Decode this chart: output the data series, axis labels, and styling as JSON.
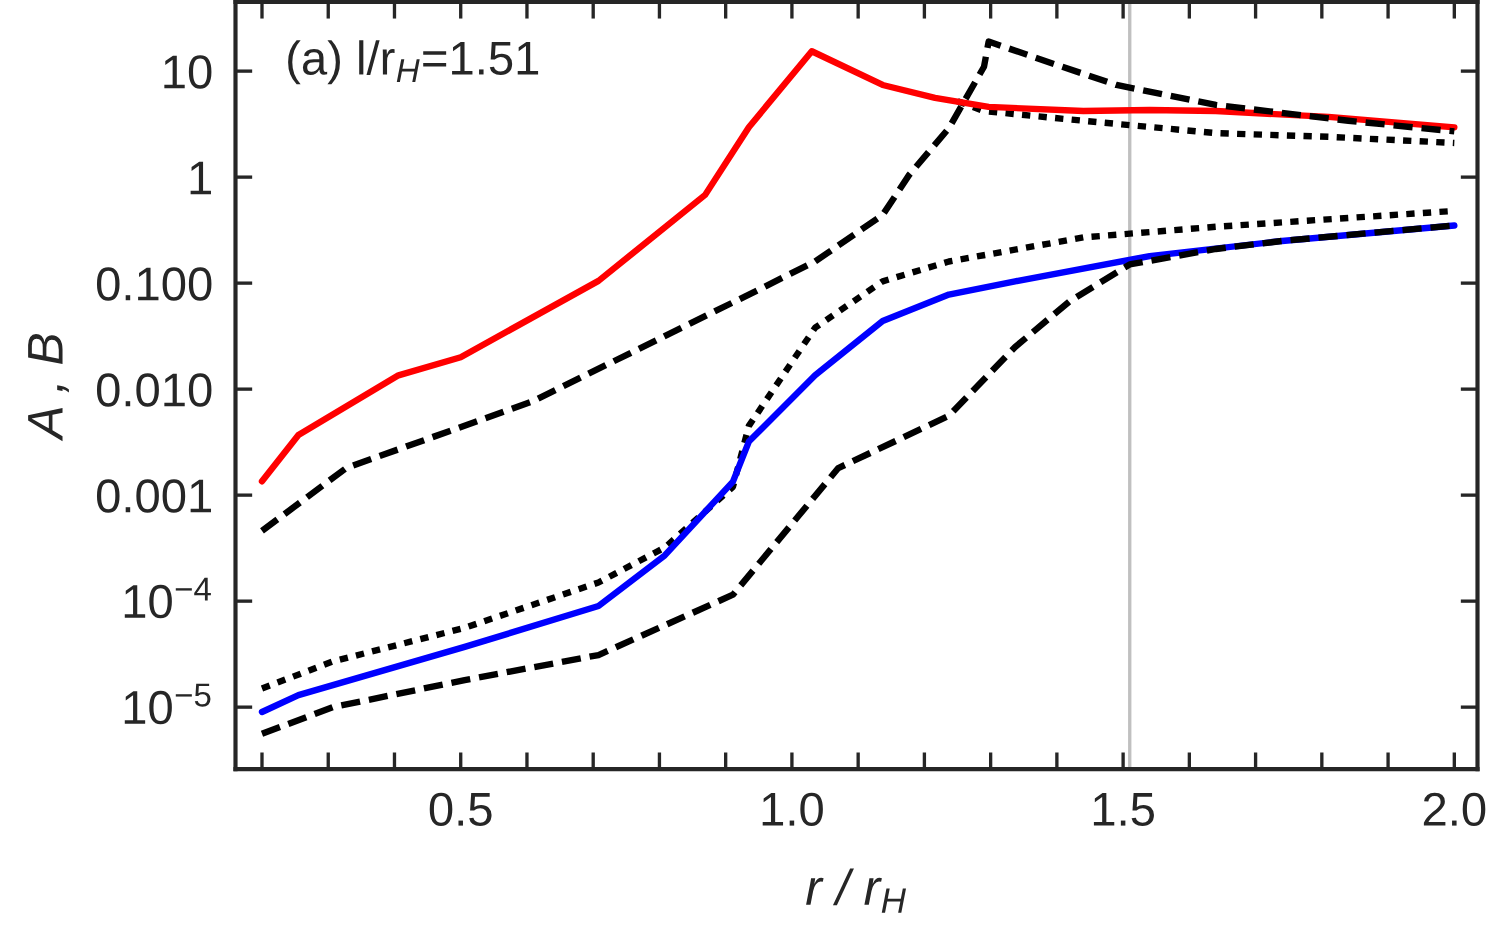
{
  "chart_data": {
    "type": "line",
    "xlabel": "r / r$_{H}$",
    "ylabel": "A , B",
    "log": "y",
    "grid": false,
    "legend": false,
    "marker": "none",
    "annotations": [
      "(a) l/r$_{H}$=1.51"
    ],
    "xlim": [
      0.16,
      2.035
    ],
    "ylim": [
      2.6e-06,
      45
    ],
    "xticks": [
      {
        "value": 0.2,
        "label": null
      },
      {
        "value": 0.3,
        "label": null
      },
      {
        "value": 0.4,
        "label": null
      },
      0.5,
      {
        "value": 0.6,
        "label": null
      },
      {
        "value": 0.7,
        "label": null
      },
      {
        "value": 0.8,
        "label": null
      },
      {
        "value": 0.9,
        "label": null
      },
      {
        "value": 1.0,
        "label": "1.0"
      },
      {
        "value": 1.1,
        "label": null
      },
      {
        "value": 1.2,
        "label": null
      },
      {
        "value": 1.3,
        "label": null
      },
      {
        "value": 1.4,
        "label": null
      },
      1.5,
      {
        "value": 1.6,
        "label": null
      },
      {
        "value": 1.7,
        "label": null
      },
      {
        "value": 1.8,
        "label": null
      },
      {
        "value": 1.9,
        "label": null
      },
      {
        "value": 2.0,
        "label": "2.0"
      }
    ],
    "yticks": [
      {
        "value": 1e-05,
        "label": "10$^{−5}$"
      },
      {
        "value": 0.0001,
        "label": "10$^{−4}$"
      },
      {
        "value": 0.001,
        "label": "0.001"
      },
      {
        "value": 0.01,
        "label": "0.010"
      },
      {
        "value": 0.1,
        "label": "0.100"
      },
      1,
      10
    ],
    "ref_lines": [
      {
        "axis": "x",
        "value": 1.51,
        "color": "#c0c0c0"
      }
    ],
    "series": [
      {
        "color": "#000000",
        "line_style": "dashed",
        "x": [
          0.2,
          0.307,
          0.506,
          0.708,
          0.911,
          1.07,
          1.237,
          1.337,
          1.42,
          1.51,
          1.64,
          1.74,
          2.0
        ],
        "values": [
          5.6e-06,
          1e-05,
          1.8e-05,
          3.1e-05,
          0.000115,
          0.0018,
          0.0056,
          0.025,
          0.068,
          0.15,
          0.21,
          0.25,
          0.35
        ]
      },
      {
        "color": "#000000",
        "line_style": "dotted",
        "x": [
          0.2,
          0.307,
          0.506,
          0.708,
          0.808,
          0.911,
          0.935,
          1.035,
          1.137,
          1.237,
          1.44,
          1.64,
          2.0
        ],
        "values": [
          1.5e-05,
          2.7e-05,
          5.6e-05,
          0.00015,
          0.00032,
          0.0012,
          0.0045,
          0.038,
          0.104,
          0.16,
          0.27,
          0.34,
          0.48
        ]
      },
      {
        "color": "#0000ff",
        "line_style": "solid",
        "x": [
          0.2,
          0.255,
          0.506,
          0.708,
          0.808,
          0.911,
          0.935,
          1.035,
          1.137,
          1.237,
          1.337,
          1.54,
          1.74,
          2.0
        ],
        "values": [
          9e-06,
          1.3e-05,
          3.7e-05,
          9e-05,
          0.00027,
          0.00134,
          0.0032,
          0.0135,
          0.044,
          0.078,
          0.104,
          0.18,
          0.25,
          0.35
        ]
      },
      {
        "color": "#000000",
        "line_style": "dashed",
        "x": [
          0.2,
          0.327,
          0.609,
          0.935,
          1.035,
          1.137,
          1.177,
          1.237,
          1.29,
          1.297,
          1.39,
          1.49,
          1.64,
          1.84,
          2.0
        ],
        "values": [
          0.00046,
          0.0018,
          0.0077,
          0.078,
          0.16,
          0.44,
          1.05,
          2.9,
          11,
          19,
          12,
          7.4,
          4.8,
          3.4,
          2.7
        ]
      },
      {
        "color": "#000000",
        "line_style": "dotted",
        "x": [
          1.25,
          1.29,
          1.44,
          1.64,
          1.81,
          2.0
        ],
        "values": [
          5.2,
          4.2,
          3.4,
          2.6,
          2.4,
          2.1
        ]
      },
      {
        "color": "#ff0000",
        "line_style": "solid",
        "x": [
          0.2,
          0.255,
          0.406,
          0.5,
          0.708,
          0.869,
          0.935,
          1.03,
          1.137,
          1.216,
          1.297,
          1.44,
          1.54,
          1.64,
          1.81,
          2.0
        ],
        "values": [
          0.00135,
          0.0037,
          0.0135,
          0.02,
          0.105,
          0.68,
          2.96,
          15.4,
          7.4,
          5.6,
          4.6,
          4.2,
          4.3,
          4.2,
          3.7,
          2.95
        ]
      }
    ]
  }
}
